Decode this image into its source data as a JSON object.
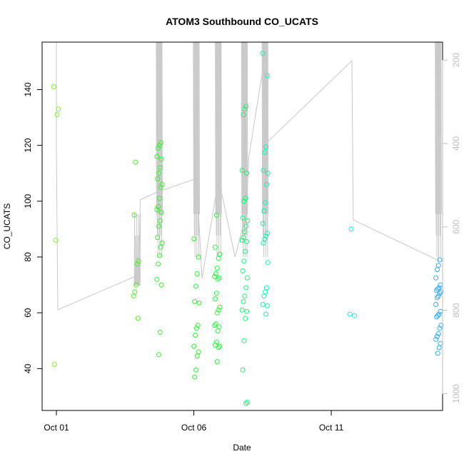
{
  "chart_data": {
    "type": "scatter",
    "title": "ATOM3 Southbound CO_UCATS",
    "xlabel": "Date",
    "ylabel": "CO_UCATS",
    "x_ticks": [
      {
        "label": "Oct 01",
        "day": 1
      },
      {
        "label": "Oct 06",
        "day": 6
      },
      {
        "label": "Oct 11",
        "day": 11
      }
    ],
    "xlim_days": [
      0.48,
      15.05
    ],
    "ylim": [
      25,
      157
    ],
    "y_ticks": [
      40,
      60,
      80,
      100,
      120,
      140
    ],
    "right_axis": {
      "note": "pressure axis, reversed, drawn in grey",
      "ticks": [
        200,
        400,
        600,
        800,
        1000
      ],
      "range": [
        157,
        1040
      ]
    },
    "grid": false,
    "point_colors": [
      "#7fee3a",
      "#2ef02e",
      "#17eea0",
      "#22e8e8",
      "#35a9f1"
    ],
    "line_color": "#c8c8c8",
    "series": [
      {
        "day": 1.0,
        "color": "#7fee3a",
        "values": [
          141,
          133,
          131,
          86,
          41.5
        ]
      },
      {
        "day": 3.9,
        "color": "#54ec30",
        "values": [
          114,
          95,
          78.5,
          77.5,
          70,
          67.5,
          66,
          58
        ]
      },
      {
        "day": 4.05,
        "color": "#54ec30",
        "values": []
      },
      {
        "day": 3.95,
        "color": "#54ec30",
        "values": []
      },
      {
        "day": 3.85,
        "color": "#54ec30",
        "values": []
      },
      {
        "day": 4.75,
        "color": "#3ced33",
        "values": [
          121,
          120,
          119,
          116,
          115,
          112,
          110,
          108,
          106,
          105,
          101,
          98,
          97,
          96,
          93,
          91,
          87,
          85,
          83.5,
          80.5,
          77.5,
          72,
          70,
          53,
          45
        ]
      },
      {
        "day": 6.1,
        "color": "#2ef02e",
        "values": [
          86.5,
          80,
          74,
          69.5,
          64,
          63.5,
          55.5,
          54.5,
          52,
          48,
          46,
          44.5,
          39.5,
          37
        ]
      },
      {
        "day": 6.85,
        "color": "#2ef042",
        "values": [
          95,
          83.5,
          81,
          79.5,
          76,
          74,
          73,
          72.5,
          72,
          67,
          65,
          62,
          61,
          60,
          56,
          55.5,
          55,
          53.5,
          49.5,
          48.5,
          48,
          47.5,
          42.5
        ]
      },
      {
        "day": 7.85,
        "color": "#22ee77",
        "values": [
          134,
          133,
          131,
          111,
          110,
          101,
          100,
          94,
          93,
          91,
          89,
          87,
          86,
          85.5,
          82,
          78.5,
          75,
          72.5,
          69,
          66,
          64,
          61,
          60.5,
          58,
          50,
          39.5,
          28,
          27.5
        ]
      },
      {
        "day": 8.6,
        "color": "#18eeb0",
        "values": [
          153,
          145,
          119.5,
          117.5,
          111,
          110,
          106,
          99.5,
          96.5,
          92,
          88.5,
          87.5,
          86.5,
          85,
          78,
          69,
          67.5,
          66,
          63,
          62.5,
          59.5
        ]
      },
      {
        "day": 11.75,
        "color": "#22e8e8",
        "values": [
          90,
          59.5,
          59
        ]
      },
      {
        "day": 14.9,
        "color": "#35a9f1",
        "values": [
          79,
          77,
          75.5,
          72.5,
          70,
          69,
          68.5,
          68,
          67.5,
          67,
          66,
          65.5,
          63,
          60.5,
          59.5,
          59,
          58.5,
          55.5,
          54.5,
          52.5,
          51.5,
          50.5,
          49,
          47.5,
          45.5
        ]
      }
    ]
  }
}
